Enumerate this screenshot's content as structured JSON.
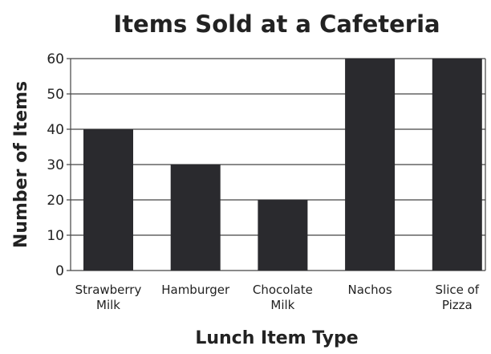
{
  "chart_data": {
    "type": "bar",
    "title": "Items Sold at a Cafeteria",
    "x_label": "Lunch Item Type",
    "y_label": "Number of Items",
    "categories": [
      "Strawberry\nMilk",
      "Hamburger",
      "Chocolate\nMilk",
      "Nachos",
      "Slice of\nPizza"
    ],
    "values": [
      40,
      30,
      20,
      60,
      60
    ],
    "color": "#2a2a2e",
    "ylim": [
      0,
      60
    ],
    "yticks": [
      0,
      10,
      20,
      30,
      40,
      50,
      60
    ],
    "grid": true
  }
}
